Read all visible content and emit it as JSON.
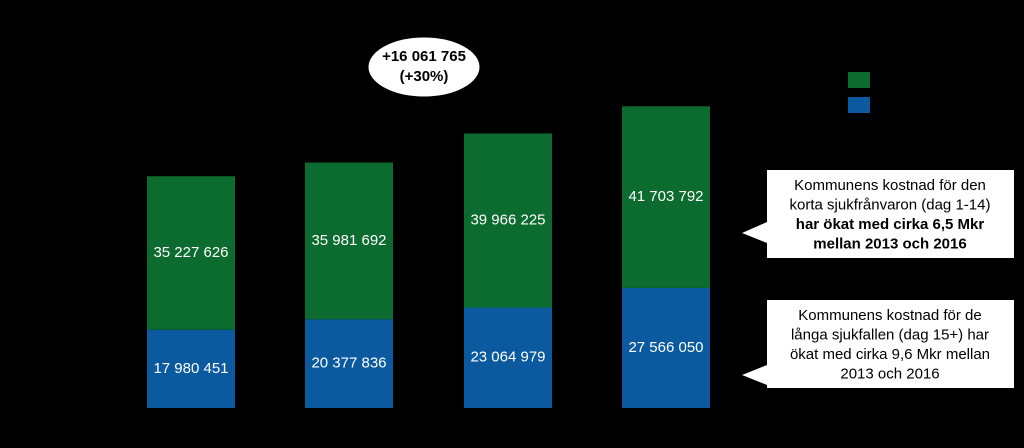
{
  "chart_data": {
    "type": "stacked-bar",
    "categories": [
      null,
      null,
      null,
      null
    ],
    "series": [
      {
        "color": "#0b5aa0",
        "values": [
          17980451,
          20377836,
          23064979,
          27566050
        ],
        "value_labels": [
          "17 980 451",
          "20 377 836",
          "23 064 979",
          "27 566 050"
        ]
      },
      {
        "color": "#0c6b2e",
        "values": [
          35227626,
          35981692,
          39966225,
          41703792
        ],
        "value_labels": [
          "35 227 626",
          "35 981 692",
          "39 966 225",
          "41 703 792"
        ]
      }
    ],
    "ylim": [
      0,
      90000000
    ],
    "annotation": [
      "+16 061 765",
      "(+30%)"
    ],
    "callouts": [
      {
        "lines": [
          {
            "text": "Kommunens kostnad för den",
            "bold": false
          },
          {
            "text": "korta sjukfrånvaron (dag 1-14)",
            "bold": false
          },
          {
            "text": "har ökat med cirka 6,5 Mkr",
            "bold": true
          },
          {
            "text": "mellan 2013 och 2016",
            "bold": true
          }
        ]
      },
      {
        "lines": [
          {
            "text": "Kommunens kostnad för de",
            "bold": false
          },
          {
            "text": "långa sjukfallen (dag 15+) har",
            "bold": false
          },
          {
            "text": "ökat med cirka 9,6 Mkr mellan",
            "bold": false
          },
          {
            "text": "2013 och 2016",
            "bold": false
          }
        ]
      }
    ]
  }
}
